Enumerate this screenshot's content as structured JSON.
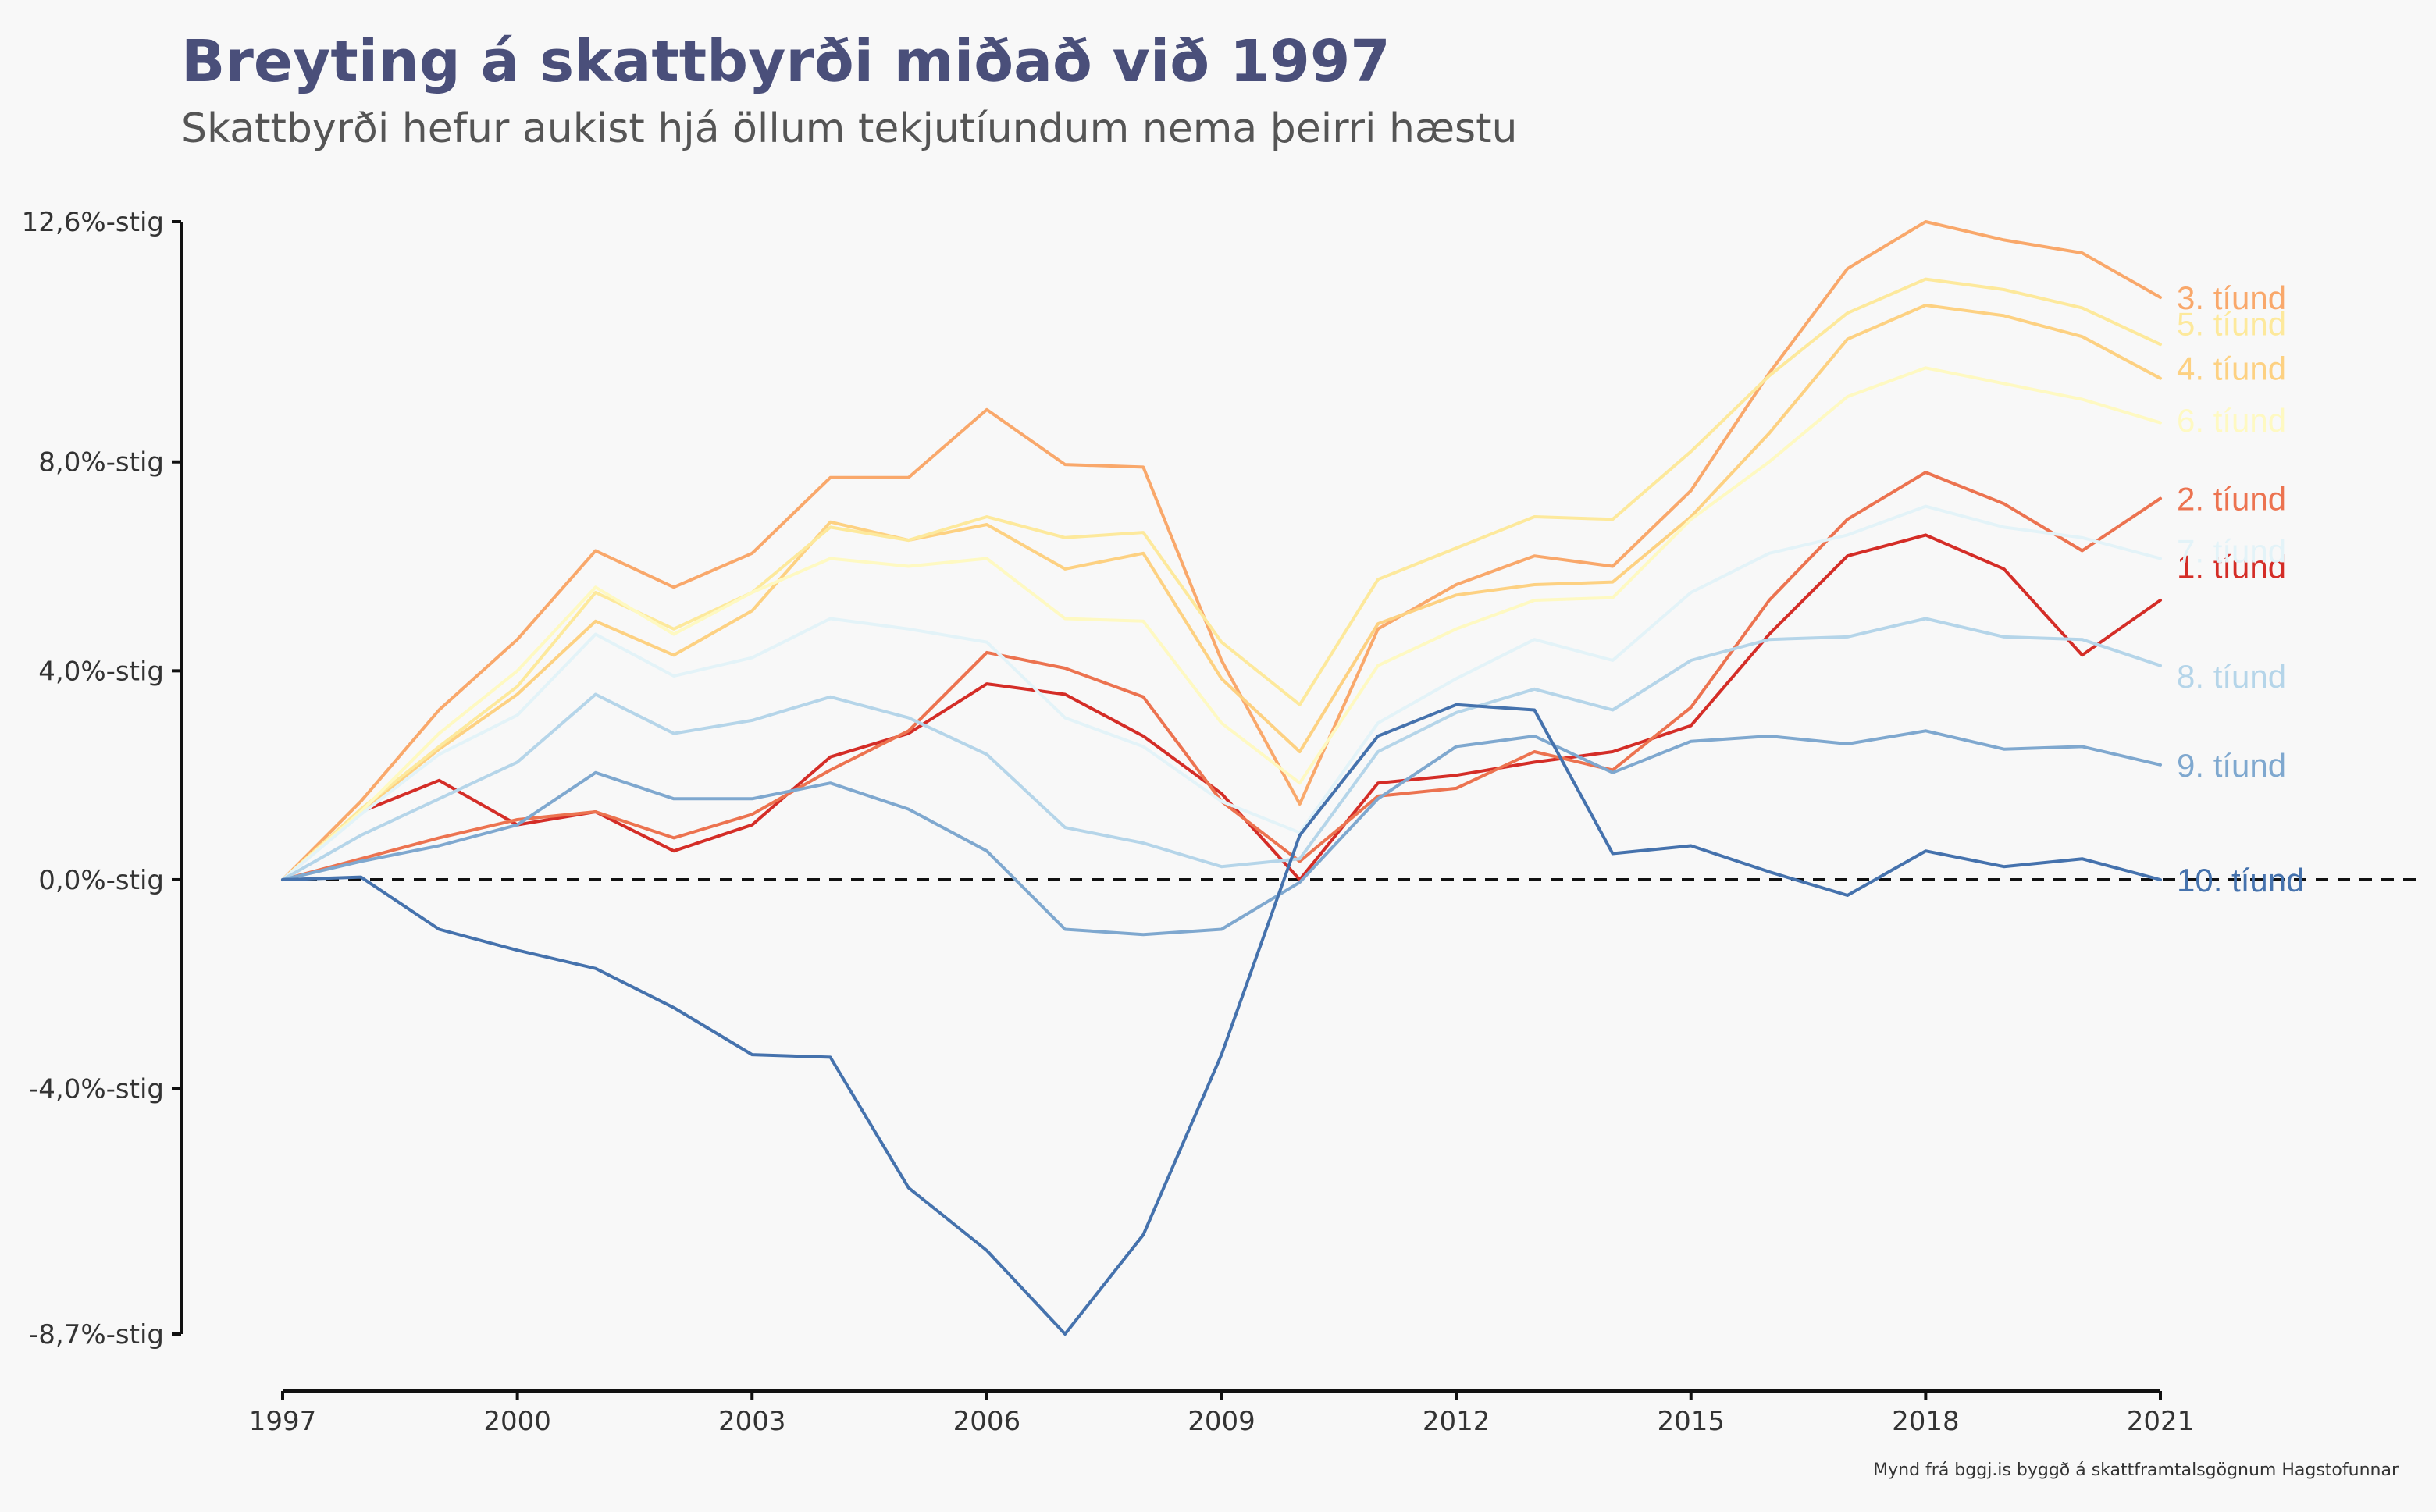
{
  "chart_data": {
    "type": "line",
    "title": "Breyting á skattbyrði miðað við 1997",
    "subtitle": "Skattbyrði hefur aukist hjá öllum tekjutíundum nema þeirri hæstu",
    "caption": "Mynd frá bggj.is byggð á skattframtalsgögnum Hagstofunnar",
    "xlabel": "",
    "ylabel": "",
    "x": [
      1997,
      1998,
      1999,
      2000,
      2001,
      2002,
      2003,
      2004,
      2005,
      2006,
      2007,
      2008,
      2009,
      2010,
      2011,
      2012,
      2013,
      2014,
      2015,
      2016,
      2017,
      2018,
      2019,
      2020,
      2021
    ],
    "xticks": [
      1997,
      2000,
      2003,
      2006,
      2009,
      2012,
      2015,
      2018,
      2021
    ],
    "xtick_labels": [
      "1997",
      "2000",
      "2003",
      "2006",
      "2009",
      "2012",
      "2015",
      "2018",
      "2021"
    ],
    "xlim": [
      1997,
      2021
    ],
    "yticks": [
      12.6,
      8.0,
      4.0,
      0.0,
      -4.0,
      -8.7
    ],
    "ytick_labels": [
      "12,6%-stig",
      "8,0%-stig",
      "4,0%-stig",
      "0,0%-stig",
      "-4,0%-stig",
      "-8,7%-stig"
    ],
    "ylim": [
      -8.7,
      12.6
    ],
    "reference_line": {
      "y": 0,
      "style": "dashed",
      "color": "#111111"
    },
    "grid": false,
    "legend": "direct labels at line ends",
    "series": [
      {
        "name": "1. tíund",
        "color": "#d42d27",
        "values": [
          0,
          1.3,
          1.9,
          1.05,
          1.3,
          0.55,
          1.05,
          2.35,
          2.8,
          3.75,
          3.55,
          2.75,
          1.65,
          0.0,
          1.85,
          2.0,
          2.25,
          2.45,
          2.95,
          4.7,
          6.2,
          6.6,
          5.95,
          4.3,
          5.35
        ]
      },
      {
        "name": "2. tíund",
        "color": "#ec7350",
        "values": [
          0,
          0.4,
          0.8,
          1.15,
          1.3,
          0.8,
          1.25,
          2.1,
          2.85,
          4.35,
          4.05,
          3.5,
          1.5,
          0.35,
          1.6,
          1.75,
          2.45,
          2.1,
          3.3,
          5.35,
          6.9,
          7.8,
          7.2,
          6.3,
          7.3
        ]
      },
      {
        "name": "3. tíund",
        "color": "#f9a86b",
        "values": [
          0,
          1.5,
          3.25,
          4.6,
          6.3,
          5.6,
          6.25,
          7.7,
          7.7,
          9.0,
          7.95,
          7.9,
          4.2,
          1.45,
          4.8,
          5.65,
          6.2,
          6.0,
          7.45,
          9.7,
          11.7,
          12.6,
          12.25,
          12.0,
          11.15
        ]
      },
      {
        "name": "4. tíund",
        "color": "#fdd182",
        "values": [
          0,
          1.3,
          2.5,
          3.55,
          4.95,
          4.3,
          5.15,
          6.85,
          6.5,
          6.8,
          5.95,
          6.25,
          3.85,
          2.45,
          4.9,
          5.45,
          5.65,
          5.7,
          6.95,
          8.55,
          10.35,
          11.0,
          10.8,
          10.4,
          9.6
        ]
      },
      {
        "name": "5. tíund",
        "color": "#fde99c",
        "values": [
          0,
          1.35,
          2.55,
          3.7,
          5.5,
          4.8,
          5.5,
          6.75,
          6.5,
          6.95,
          6.55,
          6.65,
          4.55,
          3.35,
          5.75,
          6.35,
          6.95,
          6.9,
          8.2,
          9.65,
          10.85,
          11.5,
          11.3,
          10.95,
          10.25
        ]
      },
      {
        "name": "6. tíund",
        "color": "#fef9c2",
        "values": [
          0,
          1.3,
          2.8,
          4.0,
          5.6,
          4.7,
          5.5,
          6.15,
          6.0,
          6.15,
          5.0,
          4.95,
          3.0,
          1.85,
          4.1,
          4.8,
          5.35,
          5.4,
          6.9,
          8.0,
          9.25,
          9.8,
          9.5,
          9.2,
          8.75
        ]
      },
      {
        "name": "7. tíund",
        "color": "#e3f3f8",
        "values": [
          0,
          1.25,
          2.4,
          3.15,
          4.7,
          3.9,
          4.25,
          5.0,
          4.8,
          4.55,
          3.1,
          2.55,
          1.5,
          0.9,
          3.0,
          3.85,
          4.6,
          4.2,
          5.5,
          6.25,
          6.6,
          7.15,
          6.75,
          6.55,
          6.15
        ]
      },
      {
        "name": "8. tíund",
        "color": "#b5d5e9",
        "values": [
          0,
          0.85,
          1.55,
          2.25,
          3.55,
          2.8,
          3.05,
          3.5,
          3.1,
          2.4,
          1.0,
          0.7,
          0.25,
          0.4,
          2.45,
          3.2,
          3.65,
          3.25,
          4.2,
          4.6,
          4.65,
          5.0,
          4.65,
          4.6,
          4.1
        ]
      },
      {
        "name": "9. tíund",
        "color": "#7fa8cf",
        "values": [
          0,
          0.35,
          0.65,
          1.05,
          2.05,
          1.55,
          1.55,
          1.85,
          1.35,
          0.55,
          -0.95,
          -1.05,
          -0.95,
          -0.05,
          1.55,
          2.55,
          2.75,
          2.05,
          2.65,
          2.75,
          2.6,
          2.85,
          2.5,
          2.55,
          2.2
        ]
      },
      {
        "name": "10. tíund",
        "color": "#4572ad",
        "values": [
          0,
          0.05,
          -0.95,
          -1.35,
          -1.7,
          -2.45,
          -3.35,
          -3.4,
          -5.9,
          -7.1,
          -8.7,
          -6.8,
          -3.35,
          0.85,
          2.75,
          3.35,
          3.25,
          0.5,
          0.65,
          0.15,
          -0.3,
          0.55,
          0.25,
          0.4,
          0.0
        ]
      }
    ],
    "end_labels": {
      "1. tíund": 6.0,
      "2. tíund": 7.3,
      "3. tíund": 11.15,
      "4. tíund": 9.8,
      "5. tíund": 10.65,
      "6. tíund": 8.8,
      "7. tíund": 6.3,
      "8. tíund": 3.9,
      "9. tíund": 2.2,
      "10. tíund": 0.0
    },
    "colors": {
      "title": "#4a4f7a",
      "subtitle": "#555555",
      "axis": "#111111",
      "background": "#f8f8f8"
    }
  }
}
